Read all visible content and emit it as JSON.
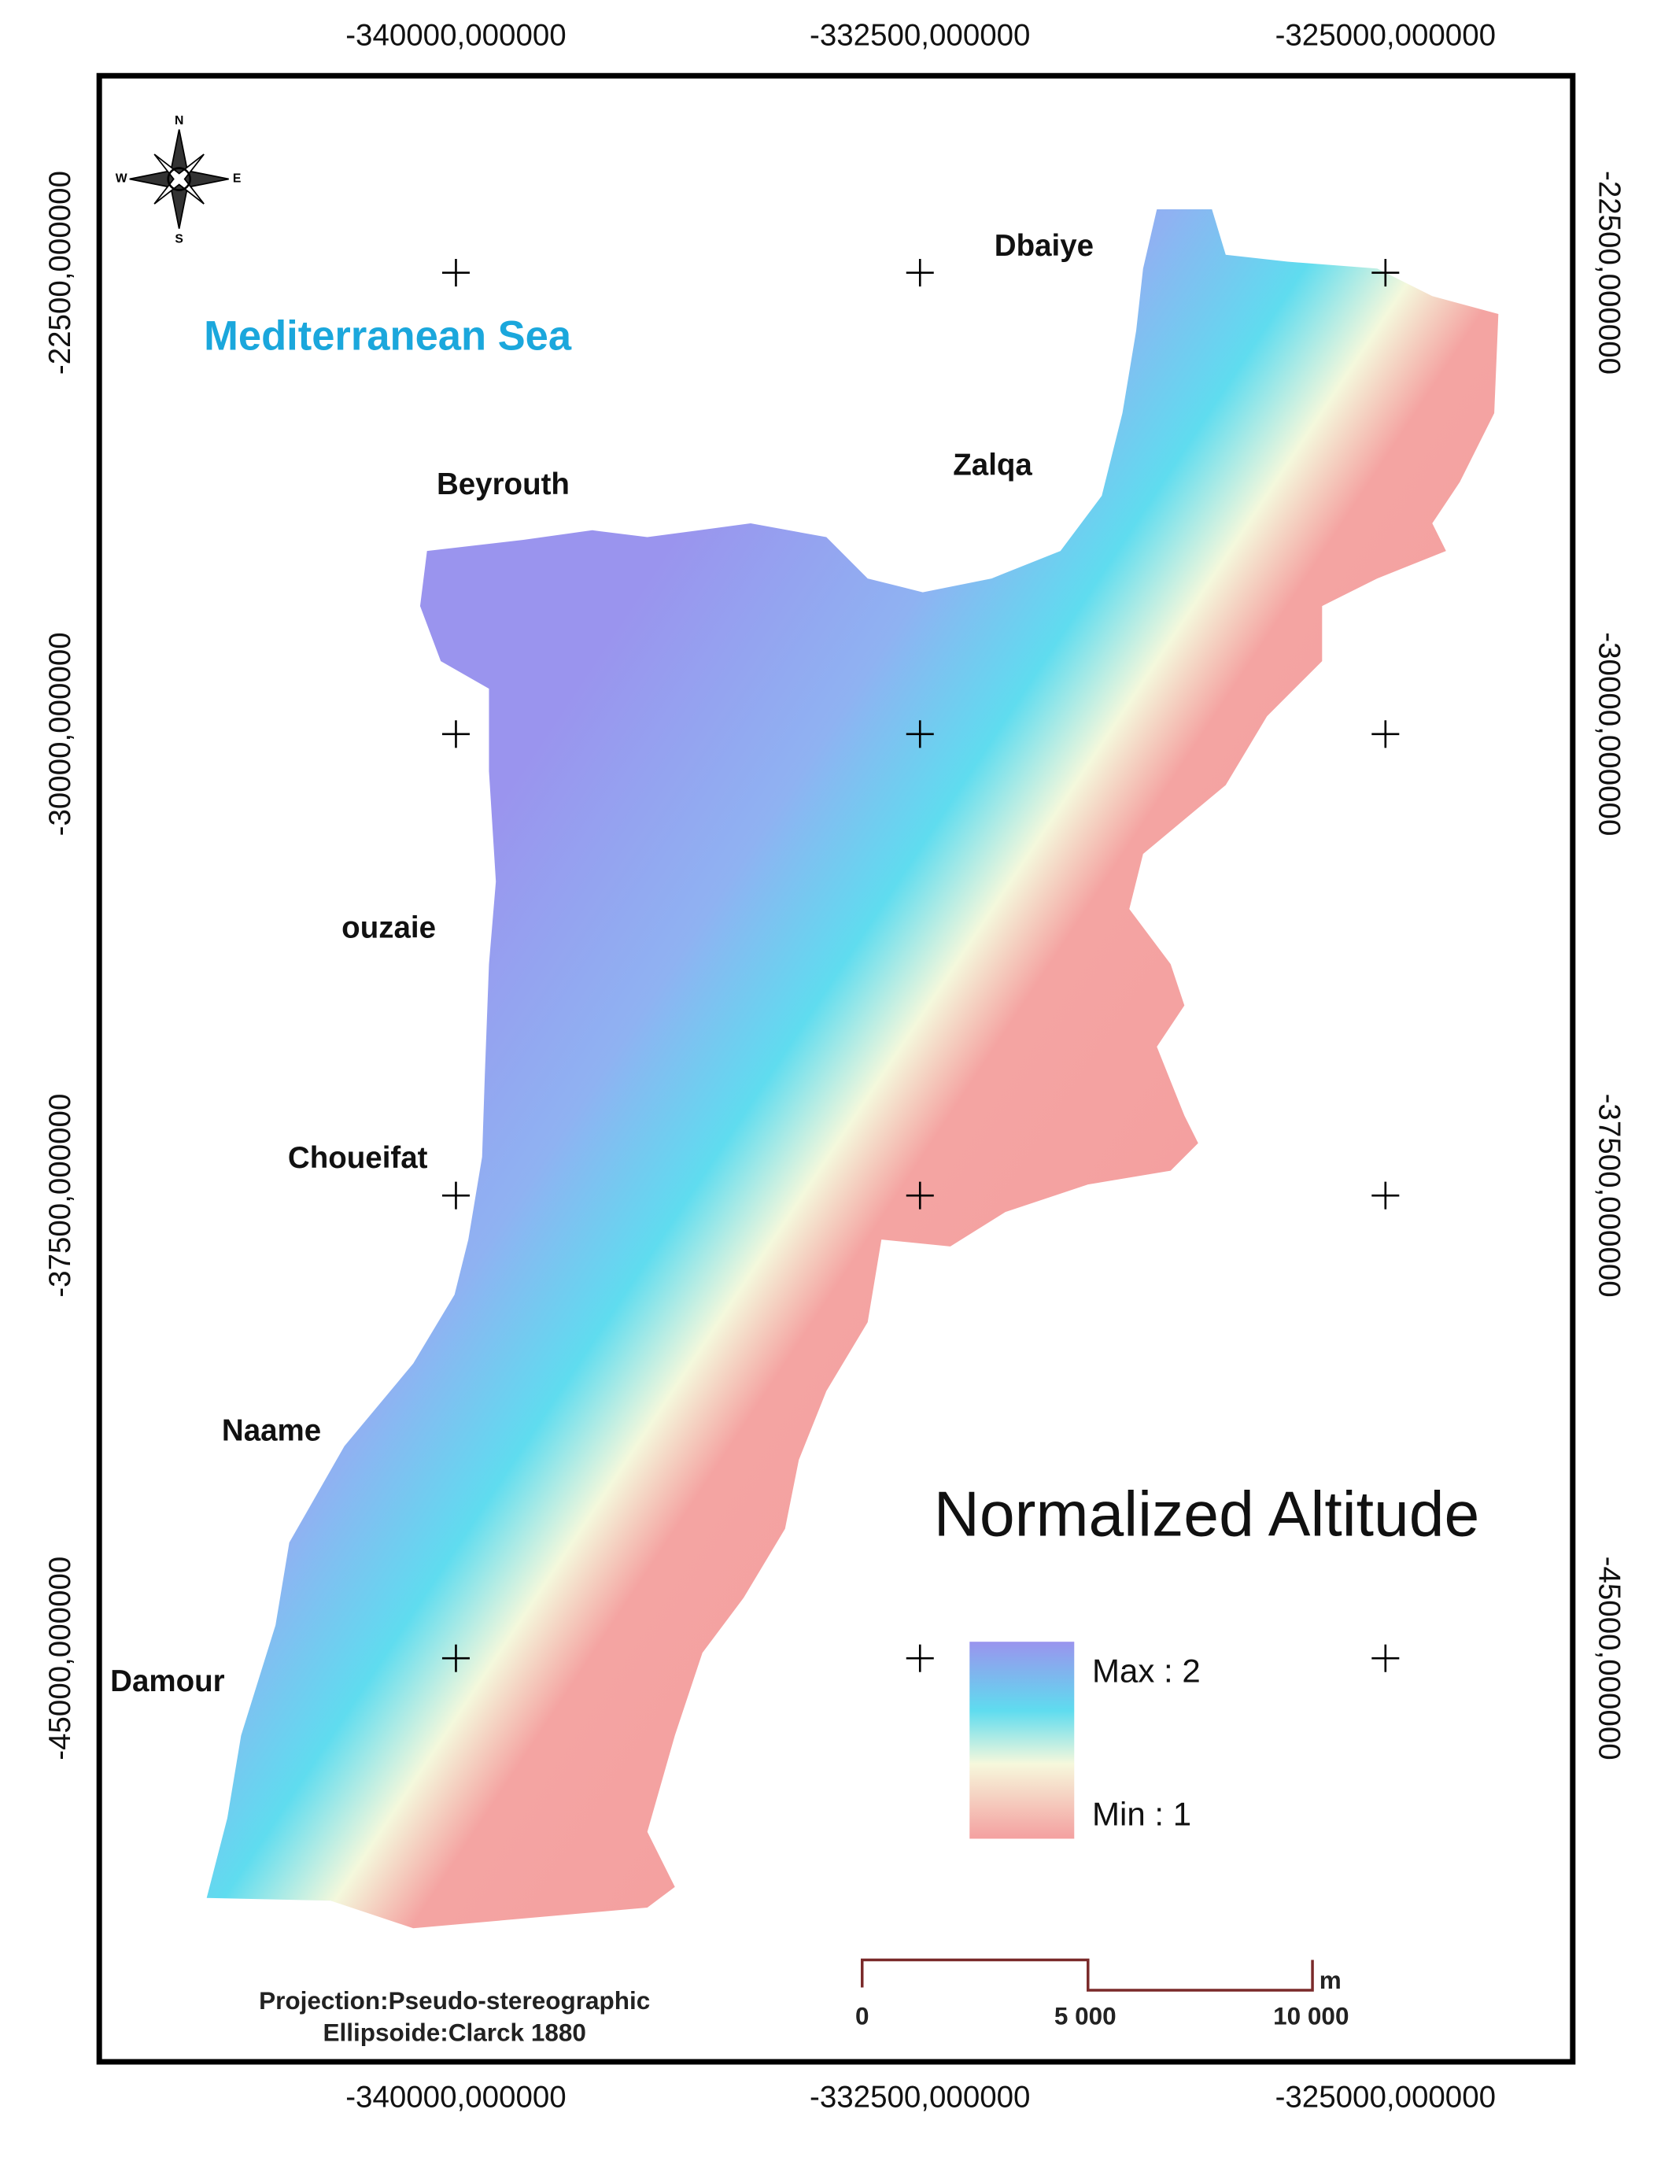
{
  "map": {
    "title": "Normalized Altitude",
    "sea_label": "Mediterranean Sea",
    "places": [
      "Dbaiye",
      "Zalqa",
      "Beyrouth",
      "ouzaie",
      "Choueifat",
      "Naame",
      "Damour"
    ],
    "x_ticks": [
      "-340000,000000",
      "-332500,000000",
      "-325000,000000"
    ],
    "y_ticks": [
      "-22500,000000",
      "-30000,000000",
      "-37500,000000",
      "-45000,000000"
    ],
    "legend": {
      "max": "Max : 2",
      "min": "Min : 1"
    },
    "projection": "Projection:Pseudo-stereographic",
    "ellipsoid": "Ellipsoide:Clarck 1880",
    "scale_bar": {
      "labels": [
        "0",
        "5 000",
        "10 000"
      ],
      "unit": "m"
    },
    "compass": [
      "N",
      "S",
      "W",
      "E"
    ]
  }
}
